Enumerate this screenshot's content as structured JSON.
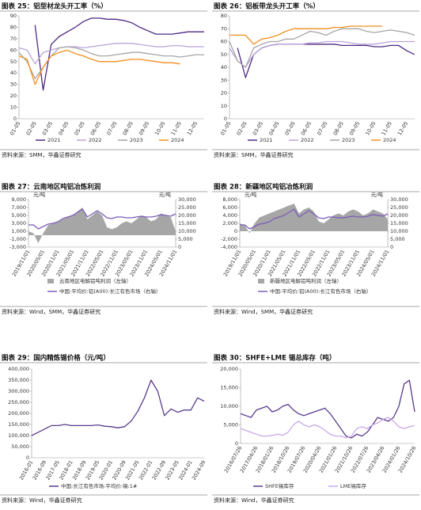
{
  "chart_data": [
    {
      "type": "line",
      "title": "图表 25：铝型材龙头开工率（%）",
      "source": "资料来源：SMM，华鑫证券研究",
      "categories": [
        "01-05",
        null,
        "02-05",
        null,
        "03-05",
        null,
        "04-05",
        null,
        "05-05",
        null,
        "06-05",
        null,
        "07-05",
        null,
        "08-05",
        null,
        "09-05",
        null,
        "10-05",
        null,
        "11-05",
        null,
        "12-05",
        null
      ],
      "ylim": [
        0,
        90
      ],
      "yticks": [
        0,
        10,
        20,
        30,
        40,
        50,
        60,
        70,
        80,
        90
      ],
      "legend": "bottom",
      "series": [
        {
          "name": "2021",
          "color": "#4e2a84",
          "values": [
            null,
            null,
            82,
            25,
            65,
            72,
            76,
            80,
            85,
            88,
            88,
            87,
            87,
            86,
            84,
            80,
            77,
            74,
            74,
            74,
            75,
            76,
            76,
            76
          ]
        },
        {
          "name": "2022",
          "color": "#b9a5d9",
          "values": [
            62,
            60,
            48,
            58,
            60,
            62,
            63,
            63,
            62,
            63,
            64,
            65,
            66,
            66,
            66,
            65,
            64,
            63,
            63,
            64,
            64,
            63,
            63,
            63
          ]
        },
        {
          "name": "2023",
          "color": "#a6a6a6",
          "values": [
            58,
            50,
            35,
            45,
            55,
            62,
            63,
            62,
            60,
            57,
            55,
            55,
            56,
            57,
            58,
            58,
            57,
            56,
            55,
            55,
            54,
            55,
            56,
            56
          ]
        },
        {
          "name": "2024",
          "color": "#f28e1c",
          "values": [
            55,
            52,
            30,
            45,
            55,
            58,
            60,
            57,
            55,
            52,
            50,
            50,
            50,
            51,
            52,
            52,
            51,
            50,
            49,
            49,
            48,
            null,
            null,
            null
          ]
        }
      ]
    },
    {
      "type": "line",
      "title": "图表 26：铝板带龙头开工率（%）",
      "source": "资料来源：SMM，华鑫证券研究",
      "categories": [
        "01-05",
        null,
        "02-05",
        null,
        "03-05",
        null,
        "04-05",
        null,
        "05-05",
        null,
        "06-05",
        null,
        "07-05",
        null,
        "08-05",
        null,
        "09-05",
        null,
        "10-05",
        null,
        "11-05",
        null,
        "12-05",
        null
      ],
      "ylim": [
        0,
        80
      ],
      "yticks": [
        0,
        10,
        20,
        30,
        40,
        50,
        60,
        70,
        80
      ],
      "legend": "bottom",
      "series": [
        {
          "name": "2021",
          "color": "#4e2a84",
          "values": [
            null,
            55,
            32,
            50,
            55,
            57,
            58,
            58,
            58,
            58,
            58,
            58,
            58,
            58,
            57,
            57,
            57,
            57,
            56,
            56,
            57,
            57,
            53,
            50
          ]
        },
        {
          "name": "2022",
          "color": "#b9a5d9",
          "values": [
            55,
            45,
            40,
            50,
            55,
            57,
            58,
            58,
            58,
            58,
            59,
            59,
            60,
            60,
            60,
            59,
            58,
            58,
            58,
            59,
            60,
            60,
            60,
            60
          ]
        },
        {
          "name": "2023",
          "color": "#a6a6a6",
          "values": [
            60,
            45,
            40,
            55,
            58,
            60,
            60,
            62,
            62,
            65,
            68,
            67,
            65,
            68,
            70,
            70,
            70,
            68,
            67,
            68,
            69,
            68,
            67,
            65
          ]
        },
        {
          "name": "2024",
          "color": "#f28e1c",
          "values": [
            65,
            65,
            65,
            58,
            62,
            63,
            65,
            68,
            70,
            70,
            70,
            70,
            70,
            71,
            71,
            72,
            72,
            72,
            72,
            72,
            null,
            null,
            null,
            null
          ]
        }
      ]
    },
    {
      "type": "line",
      "title": "图表 27：云南地区吨铝冶炼利润",
      "source": "资料来源：Wind，SMM，华鑫证券研究",
      "ylabel": "元/吨",
      "y2label": "元/吨",
      "legend": "bottom",
      "categories": [
        "2019/11/01",
        null,
        null,
        "2020/05/01",
        null,
        null,
        "2020/11/01",
        null,
        null,
        "2021/05/01",
        null,
        null,
        "2021/11/01",
        null,
        null,
        "2022/05/01",
        null,
        null,
        "2022/11/01",
        null,
        null,
        "2023/05/01",
        null,
        null,
        "2023/11/01",
        null,
        null,
        "2024/05/01",
        null,
        null,
        "2024/11/01"
      ],
      "ylim": [
        -3000,
        9000
      ],
      "yticks": [
        {
          "value": -3000,
          "label": "-3,000"
        },
        {
          "value": -1000,
          "label": "-1,000"
        },
        {
          "value": 1000,
          "label": "1,000"
        },
        {
          "value": 3000,
          "label": "3,000"
        },
        {
          "value": 5000,
          "label": "5,000"
        },
        {
          "value": 7000,
          "label": "7,000"
        },
        {
          "value": 9000,
          "label": "9,000"
        }
      ],
      "y2lim": [
        0,
        30000
      ],
      "y2ticks": [
        0,
        {
          "value": 5000,
          "label": "5,000"
        },
        {
          "value": 10000,
          "label": "10,000"
        },
        {
          "value": 15000,
          "label": "15,000"
        },
        {
          "value": 20000,
          "label": "20,000"
        },
        {
          "value": 25000,
          "label": "25,000"
        },
        {
          "value": 30000,
          "label": "30,000"
        }
      ],
      "series": [
        {
          "name": "云南地区电解铝吨利润（左轴）",
          "type": "area",
          "color": "#a6a6a6",
          "values": [
            1000,
            500,
            -2000,
            500,
            2500,
            3000,
            3500,
            4000,
            4500,
            5000,
            6000,
            7000,
            4000,
            5000,
            6000,
            5000,
            2000,
            1500,
            2000,
            3000,
            3500,
            3000,
            4000,
            5000,
            4500,
            3500,
            4000,
            5500,
            5000,
            4500,
            1000
          ]
        },
        {
          "name": "中国:平均价:铝(A00):长江有色市场（右轴）",
          "axis": "y2",
          "color": "#7b5cb8",
          "values": [
            14000,
            14000,
            11500,
            13000,
            14500,
            15000,
            16000,
            18000,
            19000,
            20000,
            22000,
            24000,
            19000,
            21000,
            23000,
            21000,
            18500,
            18000,
            19000,
            19000,
            18500,
            18500,
            19000,
            19500,
            19000,
            19000,
            19500,
            20500,
            20000,
            19500,
            21000
          ]
        }
      ]
    },
    {
      "type": "line",
      "title": "图表 28：新疆地区吨铝冶炼利润",
      "source": "资料来源：Wind，SMM，华鑫证券研究",
      "ylabel": "元/吨",
      "y2label": "元/吨",
      "legend": "bottom",
      "categories": [
        "2019/11/01",
        null,
        null,
        "2020/05/01",
        null,
        null,
        "2020/11/01",
        null,
        null,
        "2021/05/01",
        null,
        null,
        "2021/11/01",
        null,
        null,
        "2022/05/01",
        null,
        null,
        "2022/11/01",
        null,
        null,
        "2023/05/01",
        null,
        null,
        "2023/11/01",
        null,
        null,
        "2024/05/01",
        null,
        null,
        "2024/11/01"
      ],
      "ylim": [
        -4000,
        8000
      ],
      "yticks": [
        {
          "value": -4000,
          "label": "-4,000"
        },
        {
          "value": -2000,
          "label": "-2,000"
        },
        0,
        {
          "value": 2000,
          "label": "2,000"
        },
        {
          "value": 4000,
          "label": "4,000"
        },
        {
          "value": 6000,
          "label": "6,000"
        },
        {
          "value": 8000,
          "label": "8,000"
        }
      ],
      "y2lim": [
        0,
        30000
      ],
      "y2ticks": [
        0,
        {
          "value": 5000,
          "label": "5,000"
        },
        {
          "value": 10000,
          "label": "10,000"
        },
        {
          "value": 15000,
          "label": "15,000"
        },
        {
          "value": 20000,
          "label": "20,000"
        },
        {
          "value": 25000,
          "label": "25,000"
        },
        {
          "value": 30000,
          "label": "30,000"
        }
      ],
      "series": [
        {
          "name": "新疆地区电解铝吨利润（左轴）",
          "type": "area",
          "color": "#a6a6a6",
          "values": [
            2000,
            1500,
            -500,
            2000,
            3500,
            4000,
            4500,
            5000,
            5500,
            6000,
            6500,
            7000,
            4500,
            5500,
            6000,
            5000,
            2500,
            2000,
            3000,
            4000,
            4500,
            4000,
            5000,
            5500,
            5000,
            4000,
            4500,
            5500,
            5000,
            4500,
            3000
          ]
        },
        {
          "name": "中国:平均价:铝(A00):长江有色市场（右轴）",
          "axis": "y2",
          "color": "#7b5cb8",
          "values": [
            14000,
            14000,
            11500,
            13000,
            14500,
            15000,
            16000,
            18000,
            19000,
            20000,
            22000,
            24000,
            19000,
            21000,
            23000,
            21000,
            18500,
            18000,
            19000,
            19000,
            18500,
            18500,
            19000,
            19500,
            19000,
            19000,
            19500,
            20500,
            20000,
            19500,
            21000
          ]
        }
      ]
    },
    {
      "type": "line",
      "title": "图表 29：国内精炼锡价格（元/吨）",
      "source": "资料来源：Wind，华鑫证券研究",
      "legend": "bottom",
      "categories": [
        "2016-01",
        null,
        "2016-09",
        null,
        "2017-05",
        null,
        "2018-01",
        null,
        "2018-09",
        null,
        "2019-05",
        null,
        "2020-01",
        null,
        "2020-09",
        null,
        "2021-05",
        null,
        "2022-01",
        null,
        "2022-09",
        null,
        "2023-05",
        null,
        "2024-01",
        null,
        "2024-09"
      ],
      "ylim": [
        0,
        400000
      ],
      "yticks": [
        0,
        {
          "value": 50000,
          "label": "50,000"
        },
        {
          "value": 100000,
          "label": "100,000"
        },
        {
          "value": 150000,
          "label": "150,000"
        },
        {
          "value": 200000,
          "label": "200,000"
        },
        {
          "value": 250000,
          "label": "250,000"
        },
        {
          "value": 300000,
          "label": "300,000"
        },
        {
          "value": 350000,
          "label": "350,000"
        },
        {
          "value": 400000,
          "label": "400,000"
        }
      ],
      "series": [
        {
          "name": "中国:长江有色市场:平均价:锡:1#",
          "color": "#5b3a8c",
          "values": [
            100000,
            115000,
            130000,
            145000,
            145000,
            150000,
            145000,
            145000,
            145000,
            145000,
            148000,
            142000,
            140000,
            135000,
            140000,
            165000,
            210000,
            270000,
            350000,
            300000,
            190000,
            220000,
            205000,
            215000,
            215000,
            270000,
            255000
          ]
        }
      ]
    },
    {
      "type": "line",
      "title": "图表 30：SHFE+LME 锡总库存（吨）",
      "source": "资料来源：Wind，华鑫证券研究",
      "legend": "bottom",
      "categories": [
        "2016/07/26",
        null,
        null,
        "2017/04/26",
        null,
        null,
        "2018/01/26",
        null,
        null,
        "2018/10/26",
        null,
        null,
        "2019/07/26",
        null,
        null,
        "2020/04/26",
        null,
        null,
        "2021/01/26",
        null,
        null,
        "2021/10/26",
        null,
        null,
        "2022/07/26",
        null,
        null,
        "2023/04/26",
        null,
        null,
        "2024/01/26",
        null,
        null,
        "2024/10/26"
      ],
      "ylim": [
        0,
        20000
      ],
      "yticks": [
        0,
        {
          "value": 5000,
          "label": "5,000"
        },
        {
          "value": 10000,
          "label": "10,000"
        },
        {
          "value": 15000,
          "label": "15,000"
        },
        {
          "value": 20000,
          "label": "20,000"
        }
      ],
      "series": [
        {
          "name": "SHFE锡库存",
          "color": "#5b3a8c",
          "values": [
            8000,
            7500,
            7000,
            9000,
            9500,
            10000,
            8500,
            9000,
            10000,
            10500,
            9000,
            8000,
            7500,
            8000,
            8500,
            9000,
            9500,
            8000,
            6000,
            4000,
            2000,
            1500,
            2500,
            2000,
            3000,
            5000,
            7000,
            6500,
            6000,
            7000,
            10000,
            16000,
            17000,
            8500
          ]
        },
        {
          "name": "LME锡库存",
          "color": "#c9a8e8",
          "values": [
            4000,
            3500,
            3000,
            2500,
            2000,
            2000,
            2200,
            2500,
            2200,
            3000,
            5000,
            6000,
            5000,
            4500,
            5000,
            4500,
            3500,
            2500,
            2000,
            2000,
            1500,
            2000,
            4000,
            4500,
            4000,
            5000,
            5500,
            6500,
            7000,
            6000,
            4500,
            4000,
            4500,
            4800
          ]
        }
      ]
    }
  ]
}
